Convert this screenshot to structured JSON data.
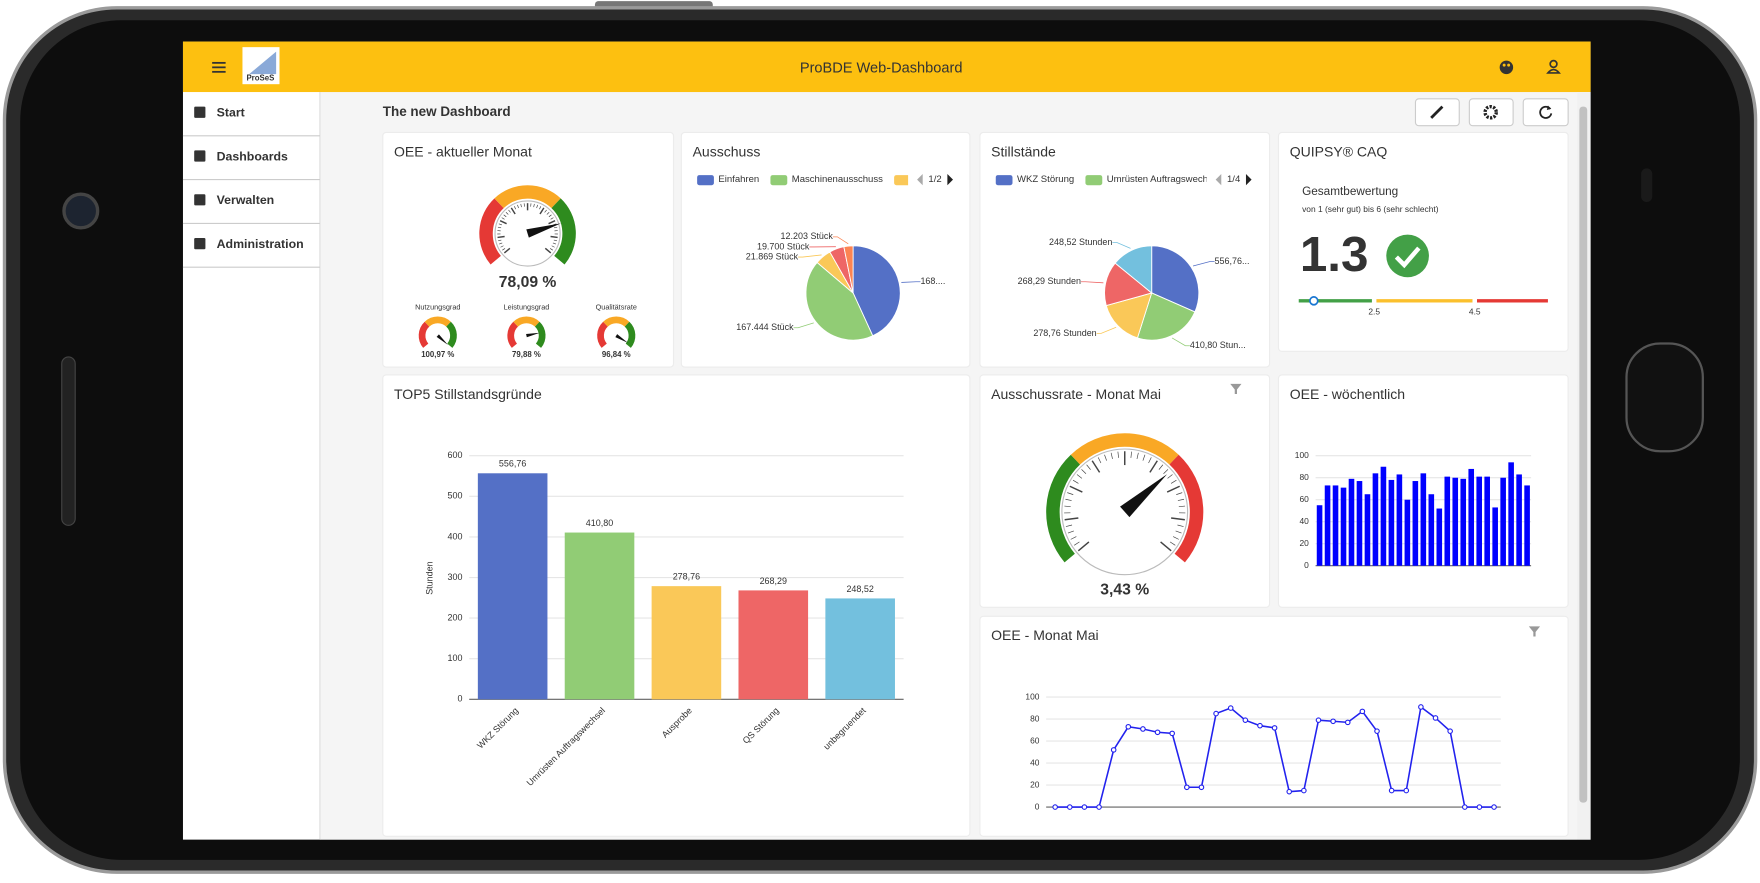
{
  "header": {
    "title": "ProBDE Web-Dashboard",
    "logo": "ProSeS"
  },
  "nav": [
    "Start",
    "Dashboards",
    "Verwalten",
    "Administration"
  ],
  "dashboard": {
    "title": "The new Dashboard"
  },
  "widgets": [
    {
      "title": "OEE - aktueller Monat",
      "chart": {
        "type": "gauge",
        "value": 78.09,
        "value_label": "78,09 %",
        "ylim": [
          0,
          100
        ],
        "colors": [
          "#e53935",
          "#f9a825",
          "#2e8b1e"
        ],
        "sub_gauges": [
          {
            "name": "Nutzungsgrad",
            "value": 100.97,
            "value_label": "100,97 %"
          },
          {
            "name": "Leistungsgrad",
            "value": 79.88,
            "value_label": "79,88 %"
          },
          {
            "name": "Qualitätsrate",
            "value": 96.84,
            "value_label": "96,84 %"
          }
        ]
      }
    },
    {
      "title": "Ausschuss",
      "chart": {
        "type": "pie",
        "categories": [
          "Einfahren",
          "Maschinenausschuss",
          "V",
          null,
          null
        ],
        "pager": "1/2",
        "values": [
          168000,
          167444,
          21869,
          19700,
          12203
        ],
        "value_labels": [
          "168....",
          "167.444 Stück",
          "21.869 Stück",
          "19.700 Stück",
          "12.203 Stück"
        ],
        "colors": [
          "#5470c6",
          "#91cc75",
          "#fac858",
          "#ee6666",
          "#fc8452"
        ]
      }
    },
    {
      "title": "Stillstände",
      "chart": {
        "type": "pie",
        "categories": [
          "WKZ Störung",
          "Umrüsten Auftragswechs",
          null,
          null,
          null
        ],
        "pager": "1/4",
        "values": [
          556.76,
          410.8,
          278.76,
          268.29,
          248.52
        ],
        "value_labels": [
          "556,76...",
          "410,80 Stun...",
          "278,76 Stunden",
          "268,29 Stunden",
          "248,52 Stunden"
        ],
        "colors": [
          "#5470c6",
          "#91cc75",
          "#fac858",
          "#ee6666",
          "#73c0de"
        ]
      }
    },
    {
      "title": "QUIPSY® CAQ",
      "chart": {
        "type": "rating",
        "subtitle": "Gesamtbewertung",
        "note": "von 1 (sehr gut) bis 6 (sehr schlecht)",
        "value": 1.3,
        "xlim": [
          1,
          6
        ],
        "xticks": [
          2.5,
          4.5
        ],
        "colors": [
          "#43a047",
          "#fbc02d",
          "#e53935"
        ]
      }
    },
    {
      "title": "TOP5 Stillstandsgründe",
      "chart": {
        "type": "bar",
        "categories": [
          "WKZ Störung",
          "Umrüsten Auftragswechsel",
          "Ausprobe",
          "QS Störung",
          "unbegruendet"
        ],
        "values": [
          556.76,
          410.8,
          278.76,
          268.29,
          248.52
        ],
        "value_labels": [
          "556,76",
          "410,80",
          "278,76",
          "268,29",
          "248,52"
        ],
        "colors": [
          "#5470c6",
          "#91cc75",
          "#fac858",
          "#ee6666",
          "#73c0de"
        ],
        "ylabel": "Stunden",
        "ylim": [
          0,
          600
        ],
        "yticks": [
          0,
          100,
          200,
          300,
          400,
          500,
          600
        ],
        "grid": true
      }
    },
    {
      "title": "Ausschussrate - Monat Mai",
      "chart": {
        "type": "gauge",
        "value": 3.43,
        "value_label": "3,43 %",
        "ylim": [
          0,
          5
        ],
        "colors": [
          "#2e8b1e",
          "#f9a825",
          "#e53935"
        ]
      }
    },
    {
      "title": "OEE - wöchentlich",
      "chart": {
        "type": "bar",
        "values": [
          55,
          73,
          73,
          71,
          79,
          77,
          65,
          84,
          90,
          78,
          83,
          60,
          77,
          84,
          65,
          52,
          81,
          80,
          79,
          88,
          81,
          81,
          53,
          80,
          94,
          83,
          73
        ],
        "color": "#0000ff",
        "ylim": [
          0,
          100
        ],
        "yticks": [
          0,
          20,
          40,
          60,
          80,
          100
        ],
        "grid": true
      }
    },
    {
      "title": "OEE - Monat Mai",
      "chart": {
        "type": "line",
        "values": [
          0,
          0,
          0,
          0,
          52,
          73,
          71,
          68,
          67,
          18,
          18,
          85,
          90,
          79,
          74,
          72,
          14,
          15,
          79,
          78,
          77,
          87,
          69,
          15,
          15,
          91,
          81,
          69,
          0,
          0,
          0
        ],
        "color": "#2222ee",
        "ylim": [
          0,
          100
        ],
        "yticks": [
          0,
          20,
          40,
          60,
          80,
          100
        ],
        "grid": true
      }
    }
  ]
}
